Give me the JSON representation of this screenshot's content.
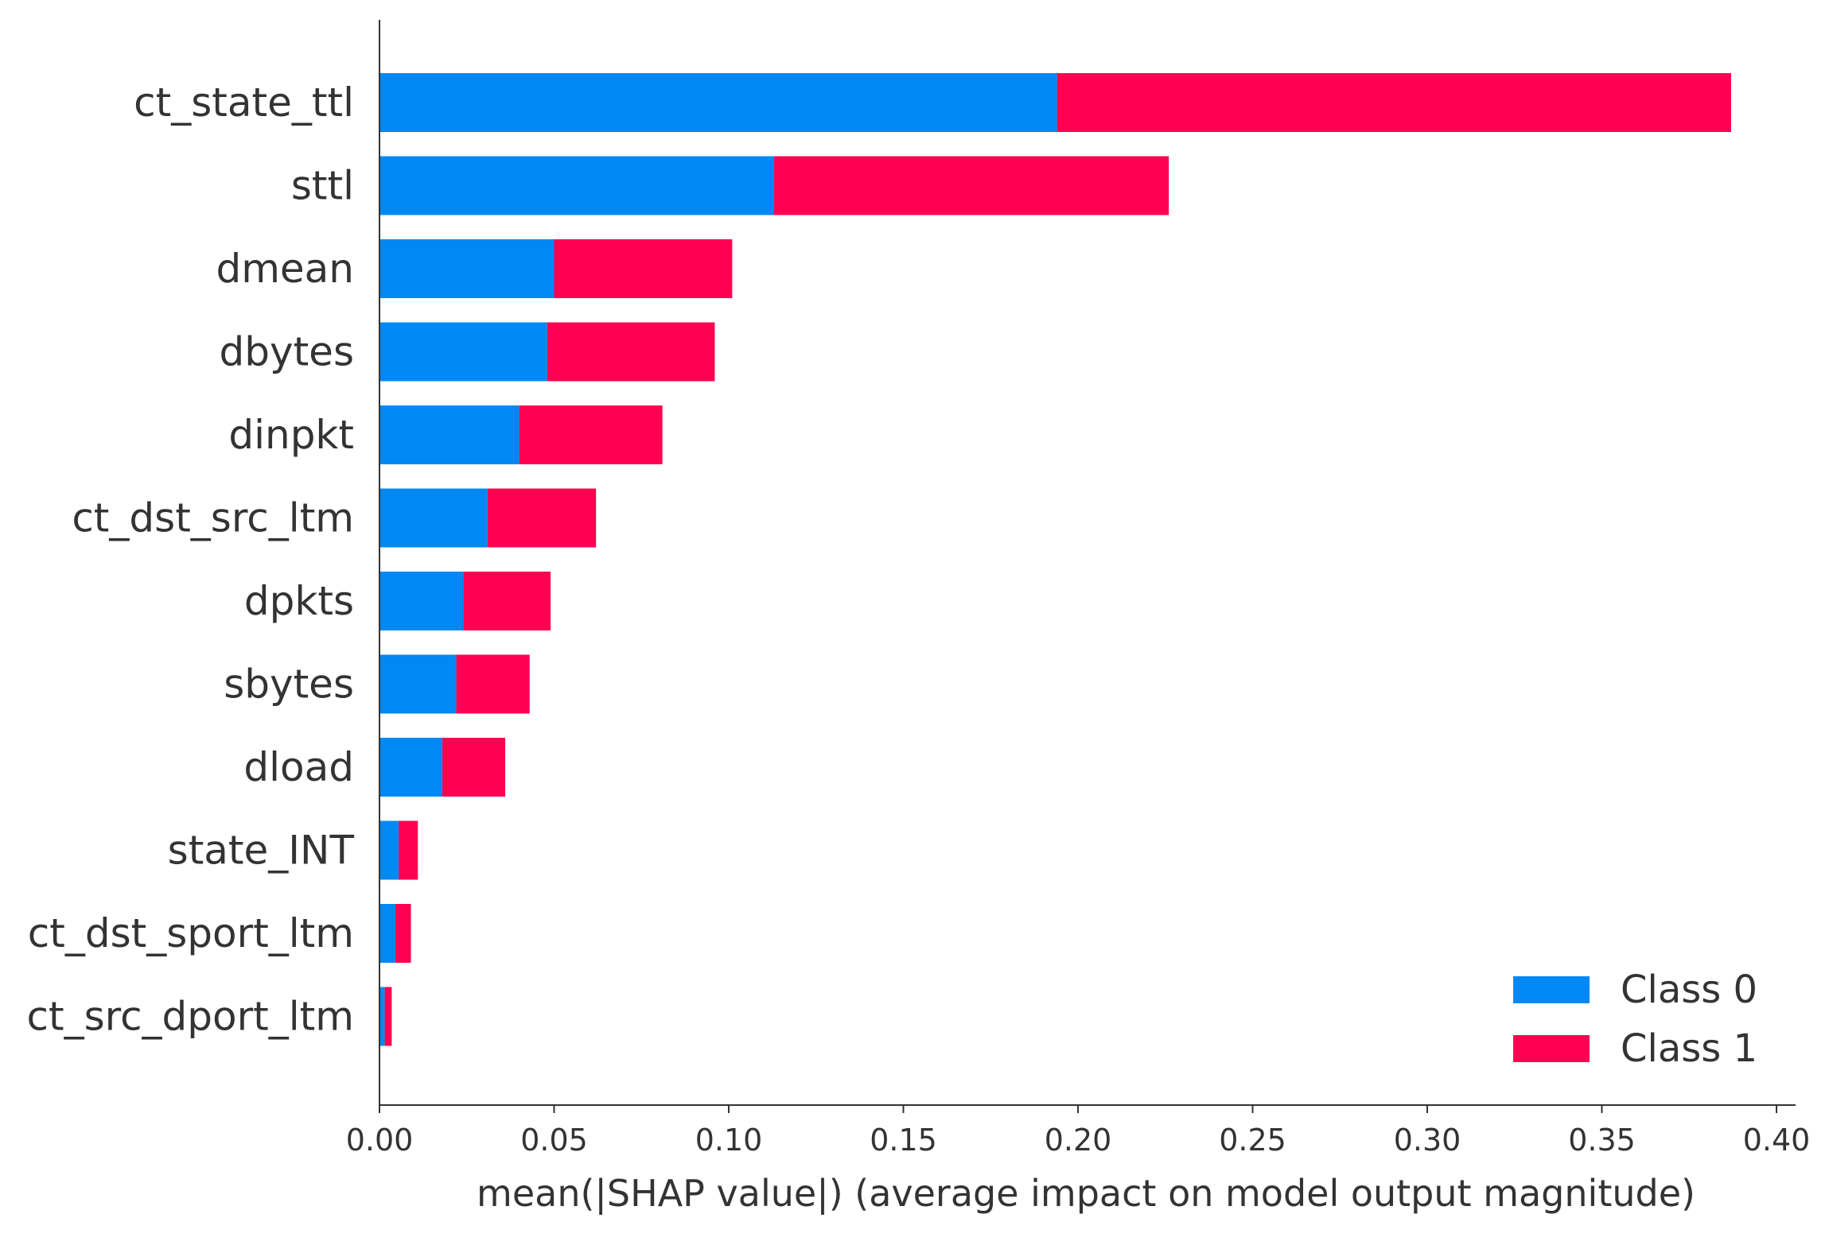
{
  "chart_data": {
    "type": "bar",
    "orientation": "horizontal",
    "stacked": true,
    "title": "",
    "xlabel": "mean(|SHAP value|) (average impact on model output magnitude)",
    "ylabel": "",
    "xlim": [
      0,
      0.41
    ],
    "xticks": [
      "0.00",
      "0.05",
      "0.10",
      "0.15",
      "0.20",
      "0.25",
      "0.30",
      "0.35",
      "0.40"
    ],
    "categories": [
      "ct_state_ttl",
      "sttl",
      "dmean",
      "dbytes",
      "dinpkt",
      "ct_dst_src_ltm",
      "dpkts",
      "sbytes",
      "dload",
      "state_INT",
      "ct_dst_sport_ltm",
      "ct_src_dport_ltm"
    ],
    "series": [
      {
        "name": "Class 0",
        "color": "#0088f5",
        "values": [
          0.194,
          0.113,
          0.05,
          0.048,
          0.04,
          0.031,
          0.024,
          0.022,
          0.018,
          0.0055,
          0.0045,
          0.0015
        ]
      },
      {
        "name": "Class 1",
        "color": "#ff0052",
        "values": [
          0.193,
          0.113,
          0.051,
          0.048,
          0.041,
          0.031,
          0.025,
          0.021,
          0.018,
          0.0055,
          0.0045,
          0.002
        ]
      }
    ],
    "legend": {
      "position": "lower-right",
      "entries": [
        "Class 0",
        "Class 1"
      ]
    },
    "grid": false
  }
}
